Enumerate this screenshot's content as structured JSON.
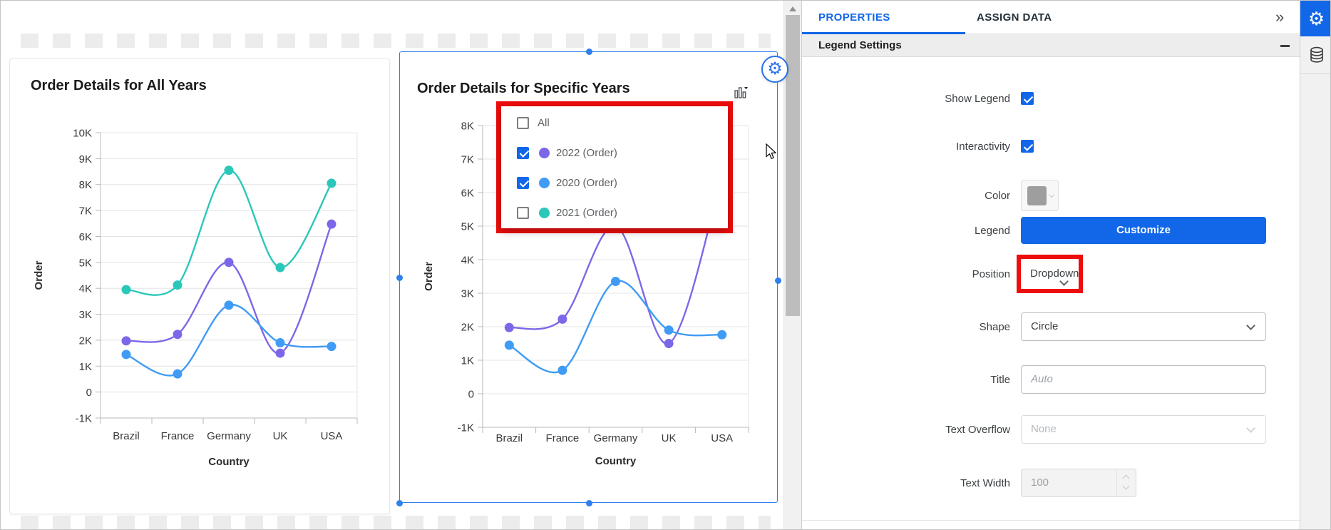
{
  "chart_data": [
    {
      "type": "line",
      "title": "Order Details for All Years",
      "categories": [
        "Brazil",
        "France",
        "Germany",
        "UK",
        "USA"
      ],
      "series": [
        {
          "name": "2022 (Order)",
          "color": "#7d67e8",
          "values": [
            1975,
            2225,
            5000,
            1500,
            6475
          ]
        },
        {
          "name": "2020 (Order)",
          "color": "#3f9bf5",
          "values": [
            1450,
            700,
            3350,
            1900,
            1760
          ]
        },
        {
          "name": "2021 (Order)",
          "color": "#2bc7b9",
          "values": [
            3950,
            4125,
            8550,
            4800,
            8050
          ]
        }
      ],
      "xlabel": "Country",
      "ylabel": "Order",
      "ylim": [
        -1000,
        10000
      ],
      "ytick_step": 1000,
      "yticks": [
        "10K",
        "9K",
        "8K",
        "7K",
        "6K",
        "5K",
        "4K",
        "3K",
        "2K",
        "1K",
        "0",
        "-1K"
      ],
      "grid": true,
      "legend": "none"
    },
    {
      "type": "line",
      "title": "Order Details for Specific Years",
      "categories": [
        "Brazil",
        "France",
        "Germany",
        "UK",
        "USA"
      ],
      "series": [
        {
          "name": "2022 (Order)",
          "color": "#7d67e8",
          "values": [
            1975,
            2225,
            5000,
            1500,
            6475
          ]
        },
        {
          "name": "2020 (Order)",
          "color": "#3f9bf5",
          "values": [
            1450,
            700,
            3350,
            1900,
            1760
          ]
        }
      ],
      "xlabel": "Country",
      "ylabel": "Order",
      "ylim": [
        -1000,
        8000
      ],
      "ytick_step": 1000,
      "yticks": [
        "8K",
        "7K",
        "6K",
        "5K",
        "4K",
        "3K",
        "2K",
        "1K",
        "0",
        "-1K"
      ],
      "grid": true,
      "legend": "dropdown"
    }
  ],
  "widgets": [
    {
      "title": "Order Details for All Years",
      "selected": false
    },
    {
      "title": "Order Details for Specific Years",
      "selected": true,
      "legend_dropdown": {
        "items": [
          {
            "label": "All",
            "checked": false,
            "color": null
          },
          {
            "label": "2022 (Order)",
            "checked": true,
            "color": "#7d67e8"
          },
          {
            "label": "2020 (Order)",
            "checked": true,
            "color": "#3f9bf5"
          },
          {
            "label": "2021 (Order)",
            "checked": false,
            "color": "#2bc7b9"
          }
        ]
      }
    }
  ],
  "panel": {
    "tabs": [
      {
        "label": "PROPERTIES",
        "active": true
      },
      {
        "label": "ASSIGN DATA",
        "active": false
      }
    ],
    "section": {
      "title": "Legend Settings"
    },
    "rows": {
      "show_legend": {
        "label": "Show Legend",
        "checked": true
      },
      "interactivity": {
        "label": "Interactivity",
        "checked": true
      },
      "color": {
        "label": "Color",
        "swatch": "#9e9e9e"
      },
      "legend": {
        "label": "Legend",
        "button_label": "Customize"
      },
      "position": {
        "label": "Position",
        "value": "Dropdown",
        "highlighted": true
      },
      "shape": {
        "label": "Shape",
        "value": "Circle"
      },
      "title": {
        "label": "Title",
        "placeholder": "Auto"
      },
      "text_overflow": {
        "label": "Text Overflow",
        "value": "None",
        "disabled": true
      },
      "text_width": {
        "label": "Text Width",
        "value": "100",
        "disabled": true
      }
    }
  },
  "icons": {
    "expand_panel": "»",
    "gear": "⚙",
    "collapse_section": "minus",
    "scroll_up": "triangle-up"
  },
  "colors": {
    "accent_blue": "#1267e8",
    "highlight_red": "#ee0d0d",
    "selection_blue": "#2f80ed",
    "color_swatch": "#9e9e9e"
  }
}
